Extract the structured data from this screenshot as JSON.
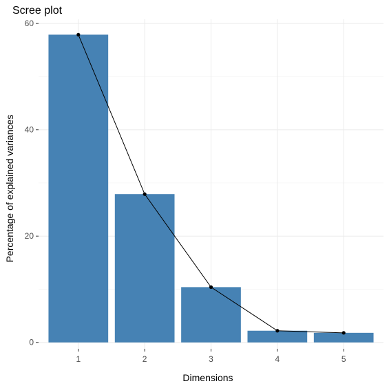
{
  "chart_data": {
    "type": "bar",
    "title": "Scree plot",
    "xlabel": "Dimensions",
    "ylabel": "Percentage of explained variances",
    "categories": [
      "1",
      "2",
      "3",
      "4",
      "5"
    ],
    "values": [
      57.9,
      27.9,
      10.4,
      2.2,
      1.8
    ],
    "ylim": [
      -1.2,
      60.8
    ],
    "yticks": [
      0,
      20,
      40,
      60
    ],
    "grid": true,
    "overlay_line": true,
    "bar_color": "#4682B4",
    "line_color": "#000000"
  }
}
